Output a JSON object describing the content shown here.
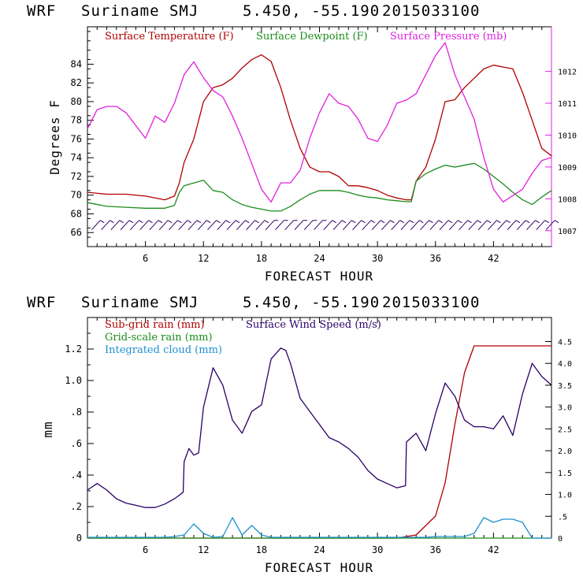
{
  "chart_data": [
    {
      "type": "line",
      "header": {
        "model": "WRF",
        "location": "Suriname SMJ",
        "coords": "5.450, -55.190",
        "run": "2015033100"
      },
      "xlabel": "FORECAST HOUR",
      "ylabel": "Degrees F",
      "xlim": [
        0,
        48
      ],
      "ylim": [
        64.5,
        88
      ],
      "y2lim": [
        1006.5,
        1013.4
      ],
      "xticks": [
        "6",
        "12",
        "18",
        "24",
        "30",
        "36",
        "42"
      ],
      "yticks": [
        "66",
        "68",
        "70",
        "72",
        "74",
        "76",
        "78",
        "80",
        "82",
        "84"
      ],
      "y2ticks": [
        "1007",
        "1008",
        "1009",
        "1010",
        "1011",
        "1012"
      ],
      "colors": {
        "temperature": "#b00000",
        "dewpoint": "#1a8c1a",
        "pressure": "#e020e0",
        "wind_barbs": "#2a0066"
      },
      "legend": [
        "Surface Temperature (F)",
        "Surface Dewpoint (F)",
        "Surface Pressure (mb)"
      ],
      "wind_barbs_row": {
        "y": 66.8,
        "x_start": 1,
        "x_end": 48,
        "x_step": 1
      },
      "series": [
        {
          "name": "Surface Temperature (F)",
          "axis": "left",
          "x": [
            0,
            2,
            4,
            6,
            8,
            9,
            9.5,
            10,
            11,
            12,
            13,
            14,
            15,
            16,
            17,
            18,
            19,
            20,
            21,
            22,
            23,
            24,
            25,
            26,
            27,
            28,
            29,
            30,
            31,
            32,
            33,
            33.5,
            34,
            35,
            36,
            37,
            38,
            39,
            40,
            41,
            42,
            43,
            44,
            45,
            46,
            47,
            48
          ],
          "y": [
            70.3,
            70.1,
            70.1,
            69.9,
            69.5,
            69.9,
            71.3,
            73.5,
            76.0,
            80.0,
            81.5,
            81.8,
            82.5,
            83.6,
            84.5,
            85.0,
            84.3,
            81.5,
            78.0,
            75.0,
            73.0,
            72.5,
            72.5,
            72.0,
            71.0,
            71.0,
            70.8,
            70.5,
            70.0,
            69.7,
            69.5,
            69.5,
            71.5,
            73.0,
            76.0,
            80.0,
            80.2,
            81.5,
            82.5,
            83.5,
            83.9,
            83.7,
            83.5,
            81.0,
            78.0,
            75.0,
            74.2
          ]
        },
        {
          "name": "Surface Dewpoint (F)",
          "axis": "left",
          "x": [
            0,
            2,
            4,
            6,
            8,
            9,
            9.5,
            10,
            11,
            12,
            13,
            14,
            15,
            16,
            17,
            18,
            19,
            20,
            21,
            22,
            23,
            24,
            25,
            26,
            27,
            28,
            29,
            30,
            31,
            32,
            33,
            33.5,
            34,
            35,
            36,
            37,
            38,
            39,
            40,
            41,
            42,
            43,
            44,
            45,
            46,
            47,
            48
          ],
          "y": [
            69.2,
            68.8,
            68.7,
            68.6,
            68.6,
            68.9,
            70.3,
            71.0,
            71.3,
            71.6,
            70.5,
            70.3,
            69.5,
            69.0,
            68.7,
            68.5,
            68.3,
            68.3,
            68.8,
            69.5,
            70.1,
            70.5,
            70.5,
            70.5,
            70.3,
            70.0,
            69.8,
            69.7,
            69.5,
            69.4,
            69.3,
            69.3,
            71.5,
            72.3,
            72.8,
            73.2,
            73.0,
            73.2,
            73.4,
            72.8,
            72.0,
            71.2,
            70.3,
            69.5,
            69.0,
            69.8,
            70.5
          ]
        },
        {
          "name": "Surface Pressure (mb)",
          "axis": "right",
          "x": [
            0,
            1,
            2,
            3,
            4,
            5,
            6,
            7,
            8,
            9,
            10,
            11,
            12,
            13,
            14,
            15,
            16,
            17,
            18,
            19,
            20,
            21,
            22,
            23,
            24,
            25,
            26,
            27,
            28,
            29,
            30,
            31,
            32,
            33,
            34,
            35,
            36,
            37,
            38,
            39,
            40,
            41,
            42,
            43,
            44,
            45,
            46,
            47,
            48
          ],
          "y": [
            1010.2,
            1010.8,
            1010.9,
            1010.9,
            1010.7,
            1010.3,
            1009.9,
            1010.6,
            1010.4,
            1011.0,
            1011.9,
            1012.3,
            1011.8,
            1011.4,
            1011.2,
            1010.6,
            1009.9,
            1009.1,
            1008.3,
            1007.9,
            1008.5,
            1008.5,
            1008.9,
            1009.9,
            1010.7,
            1011.3,
            1011.0,
            1010.9,
            1010.5,
            1009.9,
            1009.8,
            1010.3,
            1011.0,
            1011.1,
            1011.3,
            1011.9,
            1012.5,
            1012.9,
            1011.9,
            1011.2,
            1010.5,
            1009.3,
            1008.3,
            1007.9,
            1008.1,
            1008.3,
            1008.8,
            1009.2,
            1009.3
          ]
        }
      ]
    },
    {
      "type": "line",
      "header": {
        "model": "WRF",
        "location": "Suriname SMJ",
        "coords": "5.450, -55.190",
        "run": "2015033100"
      },
      "xlabel": "FORECAST HOUR",
      "ylabel": "mm",
      "xlim": [
        0,
        48
      ],
      "ylim": [
        0,
        1.4
      ],
      "y2lim": [
        0,
        5.05
      ],
      "xticks": [
        "6",
        "12",
        "18",
        "24",
        "30",
        "36",
        "42"
      ],
      "yticks": [
        "0",
        ".2",
        ".4",
        ".6",
        ".8",
        "1.0",
        "1.2"
      ],
      "y2ticks": [
        "0",
        ".5",
        "1.0",
        "1.5",
        "2.0",
        "2.5",
        "3.0",
        "3.5",
        "4.0",
        "4.5"
      ],
      "colors": {
        "subgrid_rain": "#b00000",
        "gridscale_rain": "#1a8c1a",
        "cloud": "#1e90d0",
        "wind_speed": "#2a0066"
      },
      "legend": [
        "Sub-grid rain (mm)",
        "Surface Wind Speed (m/s)",
        "Grid-scale rain (mm)",
        "Integrated cloud (mm)"
      ],
      "series": [
        {
          "name": "Sub-grid rain (mm)",
          "axis": "left",
          "x": [
            0,
            32,
            33,
            34,
            35,
            36,
            37,
            38,
            39,
            40,
            41,
            42,
            43,
            44,
            45,
            46,
            47,
            48
          ],
          "y": [
            0,
            0,
            0.01,
            0.02,
            0.08,
            0.14,
            0.35,
            0.72,
            1.05,
            1.22,
            1.22,
            1.22,
            1.22,
            1.22,
            1.22,
            1.22,
            1.22,
            1.22
          ]
        },
        {
          "name": "Grid-scale rain (mm)",
          "axis": "left",
          "x": [
            0,
            48
          ],
          "y": [
            0,
            0
          ]
        },
        {
          "name": "Integrated cloud (mm)",
          "axis": "left",
          "x": [
            0,
            8,
            9,
            10,
            11,
            12,
            13,
            14,
            15,
            16,
            17,
            18,
            19,
            20,
            24,
            32,
            35,
            36,
            38,
            39,
            40,
            41,
            42,
            43,
            44,
            45,
            46,
            47,
            48
          ],
          "y": [
            0.005,
            0.005,
            0.01,
            0.02,
            0.09,
            0.03,
            0.005,
            0.01,
            0.13,
            0.02,
            0.08,
            0.02,
            0.005,
            0.005,
            0.005,
            0.005,
            0.005,
            0.01,
            0.01,
            0.01,
            0.03,
            0.13,
            0.1,
            0.12,
            0.12,
            0.1,
            0.0,
            0.0,
            0.0
          ]
        },
        {
          "name": "Surface Wind Speed (m/s)",
          "axis": "right",
          "x": [
            0,
            1,
            2,
            3,
            4,
            5,
            6,
            7,
            8,
            9,
            9.9,
            10,
            10.5,
            11,
            11.5,
            12,
            13,
            14,
            15,
            16,
            17,
            18,
            19,
            20,
            20.5,
            21,
            22,
            23,
            24,
            25,
            26,
            27,
            28,
            29,
            30,
            31,
            32,
            32.9,
            33,
            34,
            35,
            36,
            37,
            38,
            39,
            40,
            41,
            42,
            43,
            44,
            45,
            46,
            47,
            48
          ],
          "y": [
            1.1,
            1.25,
            1.1,
            0.9,
            0.8,
            0.75,
            0.7,
            0.7,
            0.78,
            0.9,
            1.05,
            1.75,
            2.05,
            1.9,
            1.95,
            3.0,
            3.9,
            3.5,
            2.7,
            2.4,
            2.9,
            3.05,
            4.1,
            4.35,
            4.3,
            4.0,
            3.2,
            2.9,
            2.6,
            2.3,
            2.2,
            2.05,
            1.85,
            1.55,
            1.35,
            1.25,
            1.15,
            1.2,
            2.2,
            2.4,
            2.0,
            2.85,
            3.55,
            3.25,
            2.7,
            2.55,
            2.55,
            2.5,
            2.8,
            2.35,
            3.3,
            4.0,
            3.7,
            3.5
          ]
        }
      ]
    }
  ]
}
